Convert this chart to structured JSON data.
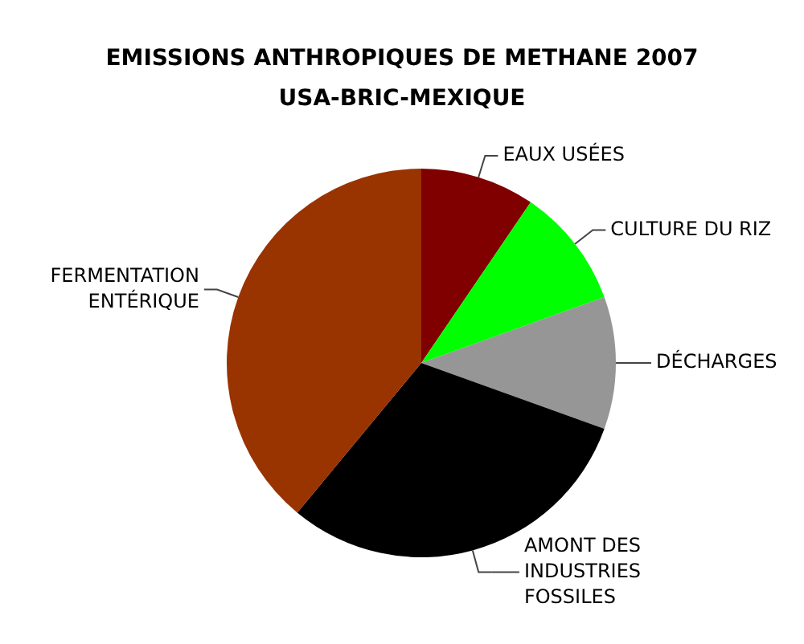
{
  "chart_data": {
    "type": "pie",
    "title": "EMISSIONS ANTHROPIQUES DE METHANE 2007",
    "subtitle": "USA-BRIC-MEXIQUE",
    "categories": [
      "EAUX USÉES",
      "CULTURE DU RIZ",
      "DÉCHARGES",
      "AMONT DES INDUSTRIES FOSSILES",
      "FERMENTATION ENTÉRIQUE"
    ],
    "values": [
      9.5,
      10,
      11,
      30.5,
      39
    ],
    "colors": [
      "#800000",
      "#00ff00",
      "#969696",
      "#000000",
      "#993300"
    ],
    "legend": false
  }
}
